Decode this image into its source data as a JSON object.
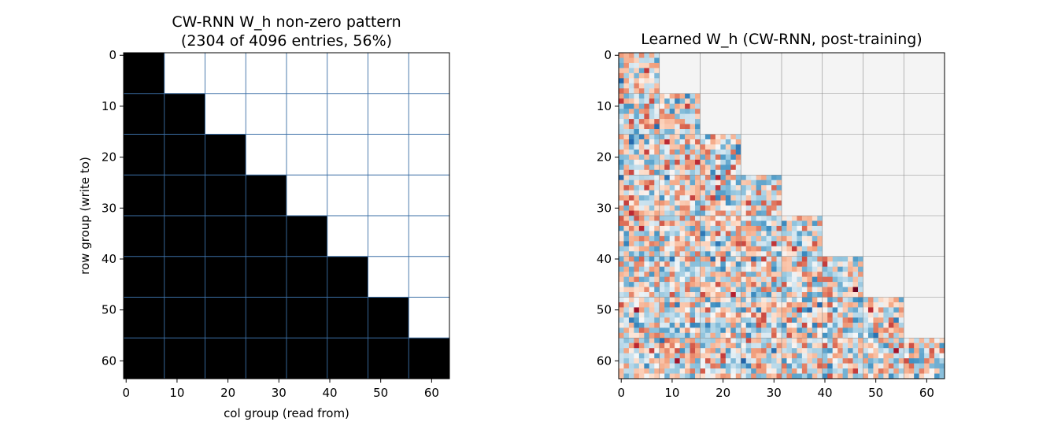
{
  "chart_data": [
    {
      "type": "heatmap",
      "title_lines": [
        "CW-RNN W_h non-zero pattern",
        "(2304 of 4096 entries, 56%)"
      ],
      "xlabel": "col group (read from)",
      "ylabel": "row group (write to)",
      "matrix_size": 64,
      "block_size": 8,
      "xlim": [
        -0.5,
        63.5
      ],
      "ylim": [
        63.5,
        -0.5
      ],
      "xticks": [
        "0",
        "10",
        "20",
        "30",
        "40",
        "50",
        "60"
      ],
      "yticks": [
        "0",
        "10",
        "20",
        "30",
        "40",
        "50",
        "60"
      ],
      "nonzero_rule": "col_group <= row_group",
      "nonzero_entries": 2304,
      "total_entries": 4096,
      "nonzero_percent": 56,
      "cmap": "binary",
      "filled_color": "#000000",
      "empty_color": "#ffffff",
      "grid": true,
      "grid_color": "#3b6fa6"
    },
    {
      "type": "heatmap",
      "title_lines": [
        "Learned W_h (CW-RNN, post-training)"
      ],
      "xlabel": "",
      "ylabel": "",
      "matrix_size": 64,
      "block_size": 8,
      "xlim": [
        -0.5,
        63.5
      ],
      "ylim": [
        63.5,
        -0.5
      ],
      "xticks": [
        "0",
        "10",
        "20",
        "30",
        "40",
        "50",
        "60"
      ],
      "yticks": [
        "0",
        "10",
        "20",
        "30",
        "40",
        "50",
        "60"
      ],
      "mask_rule": "col_group <= row_group",
      "cmap": "RdBu_r",
      "masked_color": "#f4f4f4",
      "grid": true,
      "grid_color": "#8a8a8a"
    }
  ]
}
